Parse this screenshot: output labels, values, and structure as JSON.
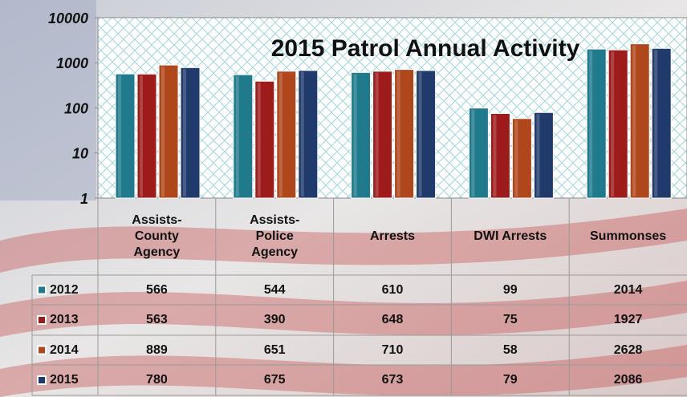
{
  "chart_data": {
    "type": "bar",
    "title": "2015 Patrol Annual Activity",
    "categories": [
      "Assists-County Agency",
      "Assists-Police Agency",
      "Arrests",
      "DWI Arrests",
      "Summonses"
    ],
    "series": [
      {
        "name": "2012",
        "color": "#1f7a8c",
        "values": [
          566,
          544,
          610,
          99,
          2014
        ]
      },
      {
        "name": "2013",
        "color": "#9e1b1b",
        "values": [
          563,
          390,
          648,
          75,
          1927
        ]
      },
      {
        "name": "2014",
        "color": "#b0461c",
        "values": [
          889,
          651,
          710,
          58,
          2628
        ]
      },
      {
        "name": "2015",
        "color": "#1f3a6b",
        "values": [
          780,
          675,
          673,
          79,
          2086
        ]
      }
    ],
    "ylim": [
      1,
      10000
    ],
    "yticks": [
      1,
      10,
      100,
      1000,
      10000
    ],
    "log_scale": true,
    "data_table": true
  }
}
